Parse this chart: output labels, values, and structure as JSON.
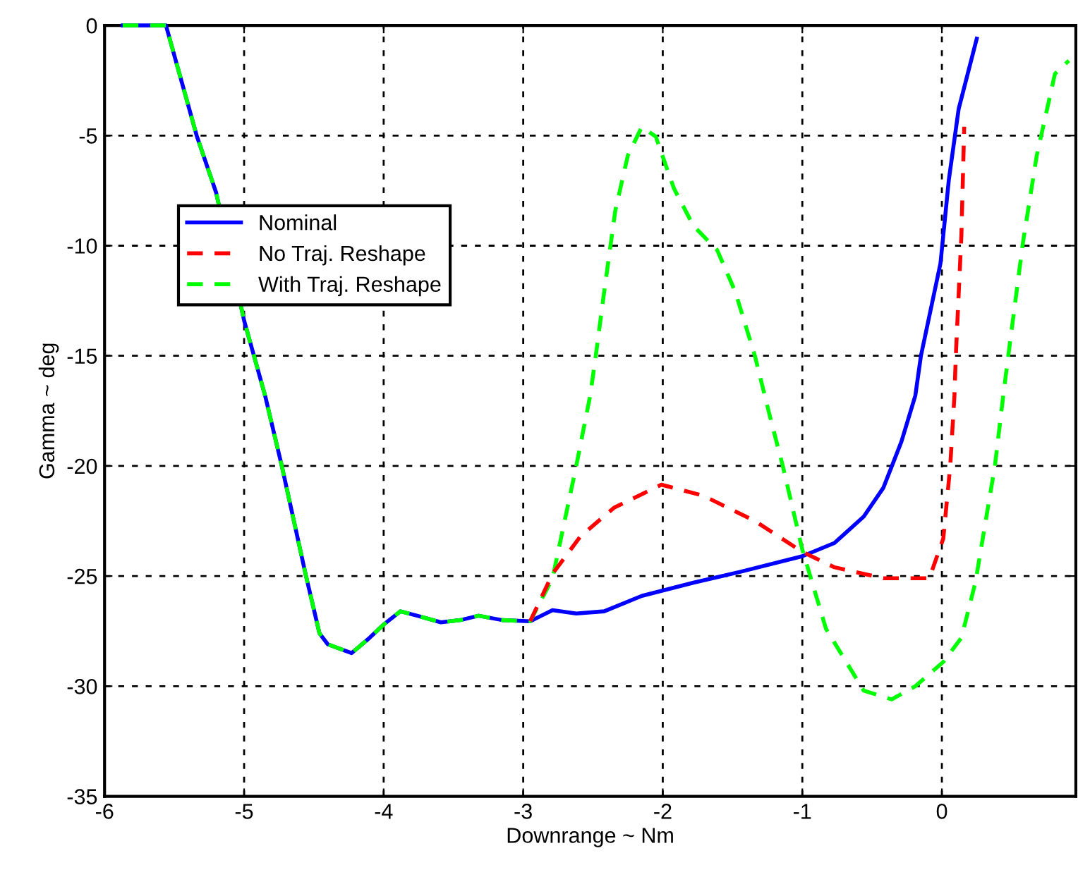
{
  "chart_data": {
    "type": "line",
    "xlabel": "Downrange ~ Nm",
    "ylabel": "Gamma ~ deg",
    "xlim": [
      -6,
      0.96
    ],
    "ylim": [
      -35,
      0
    ],
    "xticks": [
      -6,
      -5,
      -4,
      -3,
      -2,
      -1,
      0
    ],
    "yticks": [
      -35,
      -30,
      -25,
      -20,
      -15,
      -10,
      -5,
      0
    ],
    "grid": true,
    "legend": "left",
    "series": [
      {
        "name": "Nominal",
        "color": "#0000ff",
        "line_style": "solid",
        "x": [
          -5.87,
          -5.56,
          -5.34,
          -5.2,
          -5.0,
          -4.85,
          -4.73,
          -4.56,
          -4.46,
          -4.4,
          -4.23,
          -4.1,
          -4.0,
          -3.88,
          -3.76,
          -3.59,
          -3.45,
          -3.32,
          -3.15,
          -2.95,
          -2.79,
          -2.62,
          -2.42,
          -2.15,
          -1.78,
          -1.44,
          -1.0,
          -0.77,
          -0.56,
          -0.42,
          -0.29,
          -0.19,
          -0.15,
          -0.01,
          0.05,
          0.12,
          0.25
        ],
        "values": [
          0,
          0,
          -5,
          -7.6,
          -13.4,
          -16.8,
          -20,
          -24.9,
          -27.6,
          -28.1,
          -28.5,
          -27.8,
          -27.2,
          -26.6,
          -26.8,
          -27.1,
          -27.0,
          -26.8,
          -27.0,
          -27.05,
          -26.55,
          -26.7,
          -26.6,
          -25.9,
          -25.3,
          -24.8,
          -24.1,
          -23.5,
          -22.3,
          -21.0,
          -18.9,
          -16.8,
          -15.0,
          -10.8,
          -7.0,
          -3.8,
          -0.6
        ]
      },
      {
        "name": "No Traj. Reshape",
        "color": "#ff0000",
        "line_style": "dashed",
        "x": [
          -2.95,
          -2.79,
          -2.59,
          -2.35,
          -2.01,
          -1.71,
          -1.34,
          -1.0,
          -0.77,
          -0.42,
          -0.09,
          0.01,
          0.06,
          0.09,
          0.1,
          0.14,
          0.16
        ],
        "values": [
          -27.05,
          -24.9,
          -23.2,
          -21.9,
          -20.85,
          -21.35,
          -22.5,
          -23.9,
          -24.6,
          -25.1,
          -25.1,
          -23.3,
          -20.0,
          -16.8,
          -15.0,
          -9.5,
          -4.6
        ]
      },
      {
        "name": "With Traj. Reshape",
        "color": "#00ff00",
        "line_style": "dashed",
        "x": [
          -5.87,
          -5.56,
          -5.34,
          -5.2,
          -5.0,
          -4.85,
          -4.73,
          -4.56,
          -4.46,
          -4.4,
          -4.23,
          -4.1,
          -4.0,
          -3.88,
          -3.76,
          -3.59,
          -3.45,
          -3.32,
          -3.15,
          -2.95,
          -2.79,
          -2.62,
          -2.52,
          -2.48,
          -2.42,
          -2.34,
          -2.25,
          -2.15,
          -2.05,
          -1.92,
          -1.78,
          -1.61,
          -1.48,
          -1.34,
          -1.23,
          -1.14,
          -1.0,
          -0.83,
          -0.56,
          -0.36,
          -0.19,
          0.01,
          0.14,
          0.24,
          0.38,
          0.44,
          0.48,
          0.58,
          0.68,
          0.81,
          0.91
        ],
        "values": [
          0,
          0,
          -5,
          -7.6,
          -13.4,
          -16.8,
          -20,
          -24.9,
          -27.6,
          -28.1,
          -28.5,
          -27.8,
          -27.2,
          -26.6,
          -26.8,
          -27.1,
          -27.0,
          -26.8,
          -27.0,
          -27.05,
          -25.1,
          -20.0,
          -16.8,
          -15.0,
          -12.1,
          -8.4,
          -5.9,
          -4.6,
          -5.05,
          -7.4,
          -9.1,
          -10.2,
          -12.1,
          -15.0,
          -17.8,
          -20.0,
          -23.8,
          -27.4,
          -30.2,
          -30.6,
          -30.0,
          -28.9,
          -27.8,
          -25.3,
          -20.0,
          -16.8,
          -14.8,
          -9.9,
          -5.9,
          -2.2,
          -1.6
        ]
      }
    ]
  }
}
